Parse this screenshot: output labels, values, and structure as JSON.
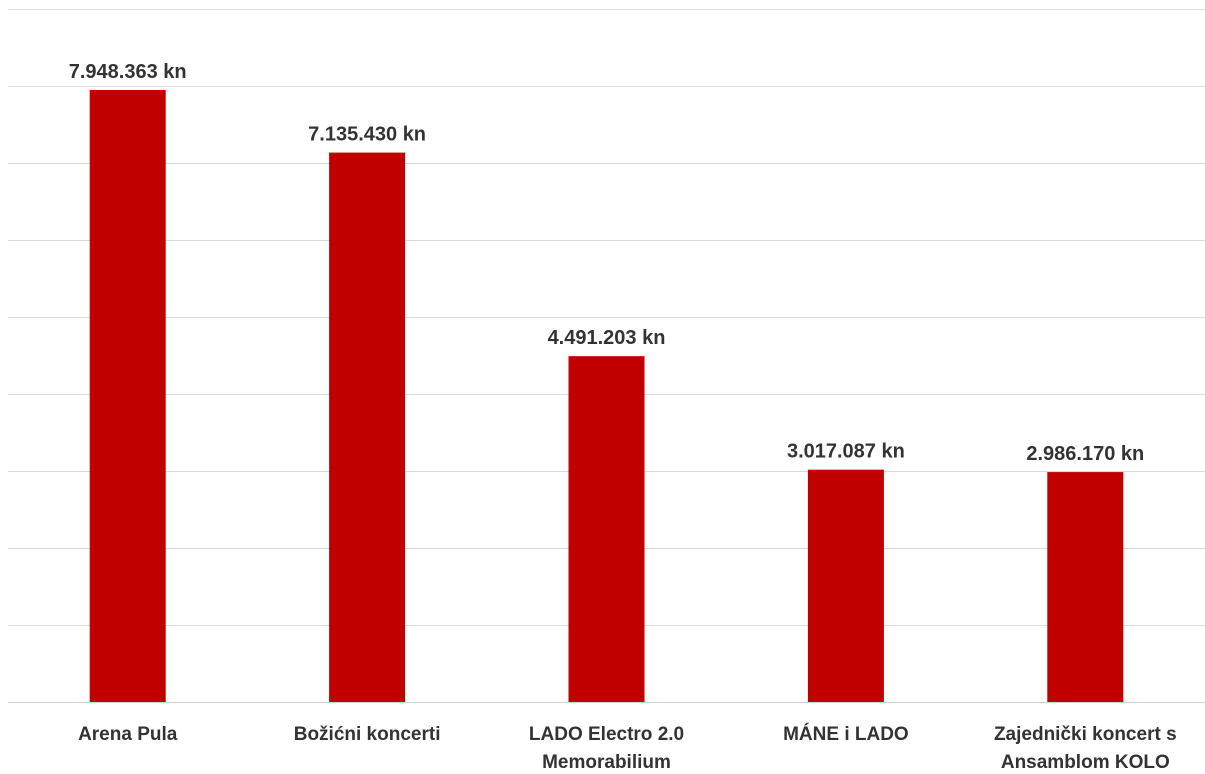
{
  "chart_data": {
    "type": "bar",
    "title": "",
    "xlabel": "",
    "ylabel": "",
    "categories": [
      [
        "Arena Pula"
      ],
      [
        "Božićni koncerti"
      ],
      [
        "LADO Electro 2.0",
        "Memorabilium"
      ],
      [
        "MÁNE i LADO"
      ],
      [
        "Zajednički koncert s",
        "Ansamblom KOLO"
      ]
    ],
    "values": [
      7948363,
      7135430,
      4491203,
      3017087,
      2986170
    ],
    "value_labels": [
      "7.948.363 kn",
      "7.135.430 kn",
      "4.491.203 kn",
      "3.017.087 kn",
      "2.986.170 kn"
    ],
    "ylim": [
      0,
      9000000
    ],
    "grid": true,
    "y_tick_labels_visible": false,
    "legend": "none",
    "bar_color": "#C00000"
  }
}
